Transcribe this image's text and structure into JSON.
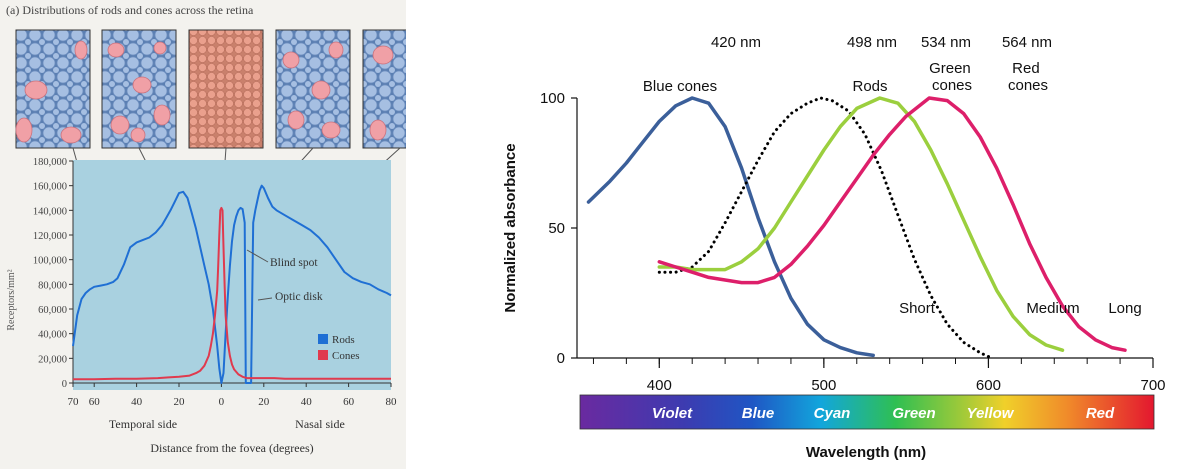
{
  "chart_data": [
    {
      "type": "line",
      "title": "(a) Distributions of rods and cones across the retina",
      "xlabel": "Distance from the fovea (degrees)",
      "ylabel": "Receptors/mm²",
      "xlim": [
        -70,
        80
      ],
      "ylim": [
        0,
        180000
      ],
      "x_ticks": [
        -70,
        -60,
        -40,
        -20,
        0,
        20,
        40,
        60,
        80
      ],
      "x_tick_labels": [
        "70",
        "60",
        "40",
        "20",
        "0",
        "20",
        "40",
        "60",
        "80"
      ],
      "y_ticks": [
        0,
        20000,
        40000,
        60000,
        80000,
        100000,
        120000,
        140000,
        160000,
        180000
      ],
      "y_tick_labels": [
        "0",
        "20,000",
        "40,000",
        "60,000",
        "80,000",
        "100,000",
        "120,000",
        "140,000",
        "160,000",
        "180,000"
      ],
      "side_labels": [
        "Temporal side",
        "Nasal side"
      ],
      "annotations": [
        "Blind spot",
        "Optic disk"
      ],
      "legend": "bottom-right",
      "series": [
        {
          "name": "Rods",
          "color": "#1f6fd4",
          "x": [
            -70,
            -68,
            -66,
            -64,
            -62,
            -60,
            -57,
            -54,
            -51,
            -49,
            -46,
            -43,
            -40,
            -37,
            -34,
            -31,
            -28,
            -26,
            -24,
            -22,
            -20,
            -18,
            -16,
            -14,
            -12,
            -10,
            -8,
            -6,
            -4,
            -2,
            -1,
            0,
            1,
            2,
            3,
            4,
            5,
            6,
            7,
            8,
            9,
            10,
            11,
            11.5,
            12,
            12.5,
            13,
            13.5,
            14,
            15,
            16,
            17,
            18,
            19,
            20,
            22,
            24,
            26,
            30,
            34,
            38,
            42,
            46,
            50,
            54,
            58,
            62,
            66,
            70,
            74,
            78,
            80
          ],
          "y": [
            30000,
            55000,
            68000,
            73000,
            76000,
            78000,
            79000,
            80000,
            82000,
            85000,
            96000,
            110000,
            114000,
            116000,
            118000,
            122000,
            128000,
            134000,
            140000,
            147000,
            154000,
            155000,
            150000,
            138000,
            125000,
            110000,
            95000,
            80000,
            60000,
            30000,
            12000,
            0,
            8000,
            40000,
            70000,
            95000,
            115000,
            128000,
            135000,
            140000,
            142000,
            141000,
            130000,
            0,
            0,
            0,
            0,
            0,
            0,
            130000,
            140000,
            148000,
            156000,
            160000,
            158000,
            150000,
            143000,
            140000,
            136000,
            132000,
            128000,
            124000,
            118000,
            110000,
            100000,
            90000,
            85000,
            82000,
            80000,
            76000,
            73000,
            71000
          ]
        },
        {
          "name": "Cones",
          "color": "#e03a4e",
          "x": [
            -70,
            -60,
            -50,
            -40,
            -30,
            -25,
            -20,
            -15,
            -12,
            -10,
            -8,
            -6,
            -5,
            -4,
            -3,
            -2,
            -1.5,
            -1,
            -0.5,
            0,
            0.5,
            1,
            1.5,
            2,
            3,
            4,
            5,
            6,
            8,
            10,
            12,
            14,
            16,
            18,
            20,
            25,
            30,
            40,
            50,
            60,
            70,
            80
          ],
          "y": [
            3000,
            3000,
            3500,
            3500,
            4000,
            4500,
            5000,
            6000,
            8000,
            10000,
            14000,
            22000,
            30000,
            40000,
            55000,
            75000,
            95000,
            120000,
            140000,
            142000,
            140000,
            110000,
            80000,
            55000,
            33000,
            22000,
            15000,
            11000,
            7000,
            5000,
            4000,
            4000,
            4000,
            4000,
            4000,
            4000,
            3500,
            3500,
            3500,
            3500,
            3500,
            3500
          ]
        }
      ]
    },
    {
      "type": "line",
      "title": "",
      "xlabel": "Wavelength (nm)",
      "ylabel": "Normalized absorbance",
      "xlim": [
        350,
        700
      ],
      "ylim": [
        0,
        100
      ],
      "x_ticks": [
        400,
        500,
        600,
        700
      ],
      "x_tick_labels": [
        "400",
        "500",
        "600",
        "700"
      ],
      "y_ticks": [
        0,
        50,
        100
      ],
      "y_tick_labels": [
        "0",
        "50",
        "100"
      ],
      "peak_labels": [
        "420 nm",
        "498 nm",
        "534 nm",
        "564 nm"
      ],
      "range_labels": [
        "Short",
        "Medium",
        "Long"
      ],
      "spectrum_labels": [
        "Violet",
        "Blue",
        "Cyan",
        "Green",
        "Yellow",
        "Red"
      ],
      "series": [
        {
          "name": "Blue cones",
          "color": "#3b5f9a",
          "style": "solid",
          "x": [
            357,
            370,
            380,
            390,
            400,
            410,
            420,
            430,
            440,
            450,
            460,
            470,
            480,
            490,
            500,
            510,
            520,
            530
          ],
          "y": [
            60,
            68,
            75,
            83,
            91,
            97,
            100,
            98,
            89,
            73,
            54,
            37,
            23,
            13,
            7,
            4,
            2,
            1
          ]
        },
        {
          "name": "Rods",
          "color": "#000000",
          "style": "dotted",
          "x": [
            400,
            410,
            420,
            430,
            440,
            450,
            460,
            470,
            480,
            490,
            498,
            505,
            515,
            525,
            535,
            545,
            555,
            565,
            575,
            585,
            595,
            602
          ],
          "y": [
            33,
            33,
            35,
            41,
            52,
            64,
            76,
            87,
            94,
            98,
            100,
            99,
            95,
            86,
            72,
            55,
            38,
            24,
            13,
            6,
            2,
            0
          ]
        },
        {
          "name": "Green cones",
          "color": "#9bcf3e",
          "style": "solid",
          "x": [
            400,
            410,
            420,
            430,
            440,
            450,
            460,
            470,
            480,
            490,
            500,
            510,
            520,
            534,
            545,
            555,
            565,
            575,
            585,
            595,
            605,
            615,
            625,
            635,
            645
          ],
          "y": [
            35,
            35,
            34,
            34,
            34,
            37,
            42,
            50,
            60,
            70,
            80,
            89,
            96,
            100,
            98,
            91,
            80,
            67,
            53,
            39,
            26,
            16,
            9,
            5,
            3
          ]
        },
        {
          "name": "Red cones",
          "color": "#dd1f6a",
          "style": "solid",
          "x": [
            400,
            410,
            420,
            430,
            440,
            450,
            460,
            470,
            480,
            490,
            500,
            510,
            520,
            530,
            540,
            550,
            564,
            575,
            585,
            595,
            605,
            615,
            625,
            635,
            645,
            655,
            665,
            675,
            683
          ],
          "y": [
            37,
            35,
            33,
            31,
            30,
            29,
            29,
            31,
            36,
            43,
            51,
            60,
            69,
            78,
            86,
            93,
            100,
            99,
            94,
            85,
            73,
            59,
            44,
            31,
            20,
            12,
            7,
            4,
            3
          ]
        }
      ]
    }
  ]
}
